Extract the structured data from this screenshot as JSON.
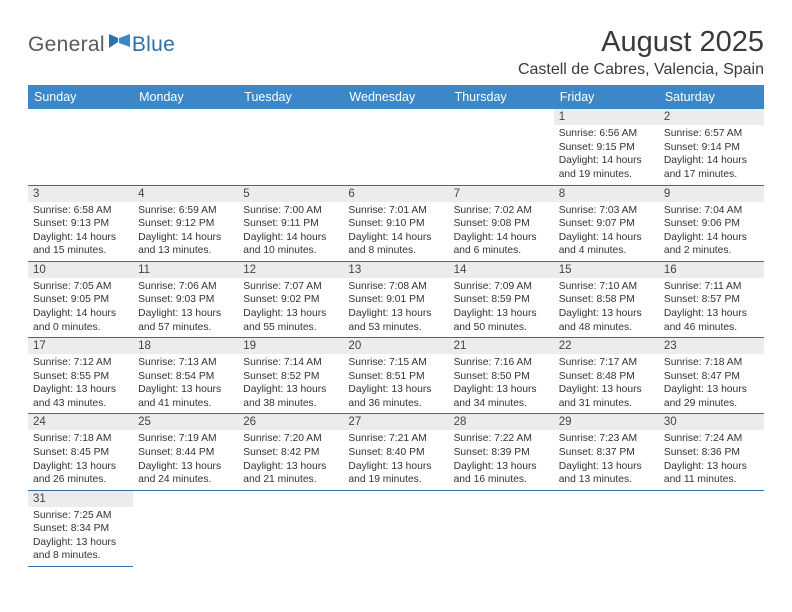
{
  "logo": {
    "general": "General",
    "blue": "Blue"
  },
  "title": {
    "month": "August 2025",
    "location": "Castell de Cabres, Valencia, Spain"
  },
  "colors": {
    "header_bg": "#3b87c8",
    "header_text": "#ffffff",
    "daynum_bg": "#ececec",
    "rule": "#2f6fa8",
    "logo_gray": "#5a5a5a",
    "logo_blue": "#2f6fa8"
  },
  "weekdays": [
    "Sunday",
    "Monday",
    "Tuesday",
    "Wednesday",
    "Thursday",
    "Friday",
    "Saturday"
  ],
  "weeks": [
    [
      null,
      null,
      null,
      null,
      null,
      {
        "n": "1",
        "sr": "Sunrise: 6:56 AM",
        "ss": "Sunset: 9:15 PM",
        "d1": "Daylight: 14 hours",
        "d2": "and 19 minutes."
      },
      {
        "n": "2",
        "sr": "Sunrise: 6:57 AM",
        "ss": "Sunset: 9:14 PM",
        "d1": "Daylight: 14 hours",
        "d2": "and 17 minutes."
      }
    ],
    [
      {
        "n": "3",
        "sr": "Sunrise: 6:58 AM",
        "ss": "Sunset: 9:13 PM",
        "d1": "Daylight: 14 hours",
        "d2": "and 15 minutes."
      },
      {
        "n": "4",
        "sr": "Sunrise: 6:59 AM",
        "ss": "Sunset: 9:12 PM",
        "d1": "Daylight: 14 hours",
        "d2": "and 13 minutes."
      },
      {
        "n": "5",
        "sr": "Sunrise: 7:00 AM",
        "ss": "Sunset: 9:11 PM",
        "d1": "Daylight: 14 hours",
        "d2": "and 10 minutes."
      },
      {
        "n": "6",
        "sr": "Sunrise: 7:01 AM",
        "ss": "Sunset: 9:10 PM",
        "d1": "Daylight: 14 hours",
        "d2": "and 8 minutes."
      },
      {
        "n": "7",
        "sr": "Sunrise: 7:02 AM",
        "ss": "Sunset: 9:08 PM",
        "d1": "Daylight: 14 hours",
        "d2": "and 6 minutes."
      },
      {
        "n": "8",
        "sr": "Sunrise: 7:03 AM",
        "ss": "Sunset: 9:07 PM",
        "d1": "Daylight: 14 hours",
        "d2": "and 4 minutes."
      },
      {
        "n": "9",
        "sr": "Sunrise: 7:04 AM",
        "ss": "Sunset: 9:06 PM",
        "d1": "Daylight: 14 hours",
        "d2": "and 2 minutes."
      }
    ],
    [
      {
        "n": "10",
        "sr": "Sunrise: 7:05 AM",
        "ss": "Sunset: 9:05 PM",
        "d1": "Daylight: 14 hours",
        "d2": "and 0 minutes."
      },
      {
        "n": "11",
        "sr": "Sunrise: 7:06 AM",
        "ss": "Sunset: 9:03 PM",
        "d1": "Daylight: 13 hours",
        "d2": "and 57 minutes."
      },
      {
        "n": "12",
        "sr": "Sunrise: 7:07 AM",
        "ss": "Sunset: 9:02 PM",
        "d1": "Daylight: 13 hours",
        "d2": "and 55 minutes."
      },
      {
        "n": "13",
        "sr": "Sunrise: 7:08 AM",
        "ss": "Sunset: 9:01 PM",
        "d1": "Daylight: 13 hours",
        "d2": "and 53 minutes."
      },
      {
        "n": "14",
        "sr": "Sunrise: 7:09 AM",
        "ss": "Sunset: 8:59 PM",
        "d1": "Daylight: 13 hours",
        "d2": "and 50 minutes."
      },
      {
        "n": "15",
        "sr": "Sunrise: 7:10 AM",
        "ss": "Sunset: 8:58 PM",
        "d1": "Daylight: 13 hours",
        "d2": "and 48 minutes."
      },
      {
        "n": "16",
        "sr": "Sunrise: 7:11 AM",
        "ss": "Sunset: 8:57 PM",
        "d1": "Daylight: 13 hours",
        "d2": "and 46 minutes."
      }
    ],
    [
      {
        "n": "17",
        "sr": "Sunrise: 7:12 AM",
        "ss": "Sunset: 8:55 PM",
        "d1": "Daylight: 13 hours",
        "d2": "and 43 minutes."
      },
      {
        "n": "18",
        "sr": "Sunrise: 7:13 AM",
        "ss": "Sunset: 8:54 PM",
        "d1": "Daylight: 13 hours",
        "d2": "and 41 minutes."
      },
      {
        "n": "19",
        "sr": "Sunrise: 7:14 AM",
        "ss": "Sunset: 8:52 PM",
        "d1": "Daylight: 13 hours",
        "d2": "and 38 minutes."
      },
      {
        "n": "20",
        "sr": "Sunrise: 7:15 AM",
        "ss": "Sunset: 8:51 PM",
        "d1": "Daylight: 13 hours",
        "d2": "and 36 minutes."
      },
      {
        "n": "21",
        "sr": "Sunrise: 7:16 AM",
        "ss": "Sunset: 8:50 PM",
        "d1": "Daylight: 13 hours",
        "d2": "and 34 minutes."
      },
      {
        "n": "22",
        "sr": "Sunrise: 7:17 AM",
        "ss": "Sunset: 8:48 PM",
        "d1": "Daylight: 13 hours",
        "d2": "and 31 minutes."
      },
      {
        "n": "23",
        "sr": "Sunrise: 7:18 AM",
        "ss": "Sunset: 8:47 PM",
        "d1": "Daylight: 13 hours",
        "d2": "and 29 minutes."
      }
    ],
    [
      {
        "n": "24",
        "sr": "Sunrise: 7:18 AM",
        "ss": "Sunset: 8:45 PM",
        "d1": "Daylight: 13 hours",
        "d2": "and 26 minutes."
      },
      {
        "n": "25",
        "sr": "Sunrise: 7:19 AM",
        "ss": "Sunset: 8:44 PM",
        "d1": "Daylight: 13 hours",
        "d2": "and 24 minutes."
      },
      {
        "n": "26",
        "sr": "Sunrise: 7:20 AM",
        "ss": "Sunset: 8:42 PM",
        "d1": "Daylight: 13 hours",
        "d2": "and 21 minutes."
      },
      {
        "n": "27",
        "sr": "Sunrise: 7:21 AM",
        "ss": "Sunset: 8:40 PM",
        "d1": "Daylight: 13 hours",
        "d2": "and 19 minutes."
      },
      {
        "n": "28",
        "sr": "Sunrise: 7:22 AM",
        "ss": "Sunset: 8:39 PM",
        "d1": "Daylight: 13 hours",
        "d2": "and 16 minutes."
      },
      {
        "n": "29",
        "sr": "Sunrise: 7:23 AM",
        "ss": "Sunset: 8:37 PM",
        "d1": "Daylight: 13 hours",
        "d2": "and 13 minutes."
      },
      {
        "n": "30",
        "sr": "Sunrise: 7:24 AM",
        "ss": "Sunset: 8:36 PM",
        "d1": "Daylight: 13 hours",
        "d2": "and 11 minutes."
      }
    ],
    [
      {
        "n": "31",
        "sr": "Sunrise: 7:25 AM",
        "ss": "Sunset: 8:34 PM",
        "d1": "Daylight: 13 hours",
        "d2": "and 8 minutes."
      },
      null,
      null,
      null,
      null,
      null,
      null
    ]
  ]
}
